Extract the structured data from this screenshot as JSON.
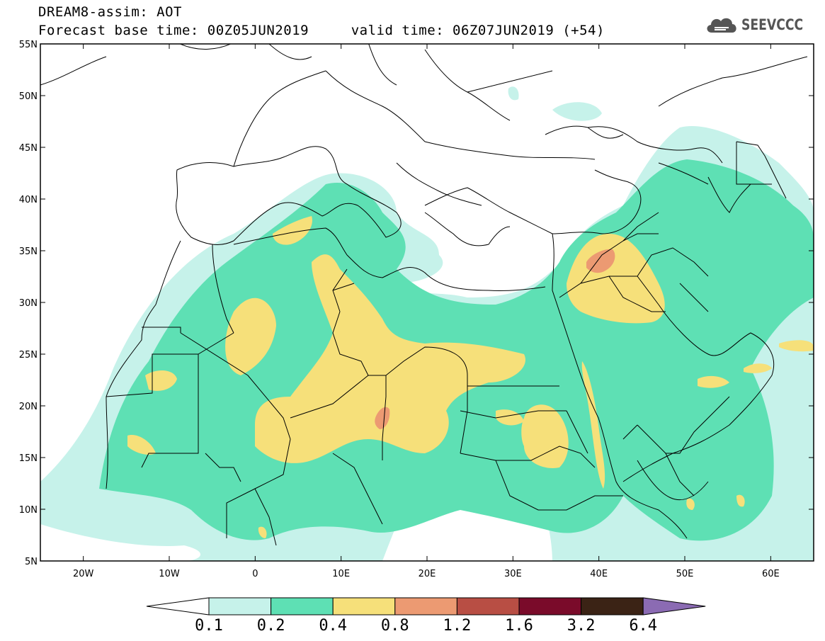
{
  "title": {
    "line1": "DREAM8-assim: AOT",
    "line2": "Forecast base time: 00Z05JUN2019     valid time: 06Z07JUN2019 (+54)"
  },
  "logo": {
    "text": "SEEVCCC",
    "icon": "cloud-icon"
  },
  "map": {
    "lon_range": [
      -25,
      65
    ],
    "lat_range": [
      5,
      55
    ],
    "lat_ticks": [
      "55N",
      "50N",
      "45N",
      "40N",
      "35N",
      "30N",
      "25N",
      "20N",
      "15N",
      "10N",
      "5N"
    ],
    "lon_ticks": [
      "20W",
      "10W",
      "0",
      "10E",
      "20E",
      "30E",
      "40E",
      "50E",
      "60E"
    ]
  },
  "colorbar": {
    "labels": [
      "0.1",
      "0.2",
      "0.4",
      "0.8",
      "1.2",
      "1.6",
      "3.2",
      "6.4"
    ],
    "colors": [
      "#c6f2ea",
      "#5ee0b4",
      "#f6e07a",
      "#ec9a72",
      "#b84e44",
      "#7a0b2a",
      "#3b2315",
      "#8b6bb3"
    ]
  }
}
